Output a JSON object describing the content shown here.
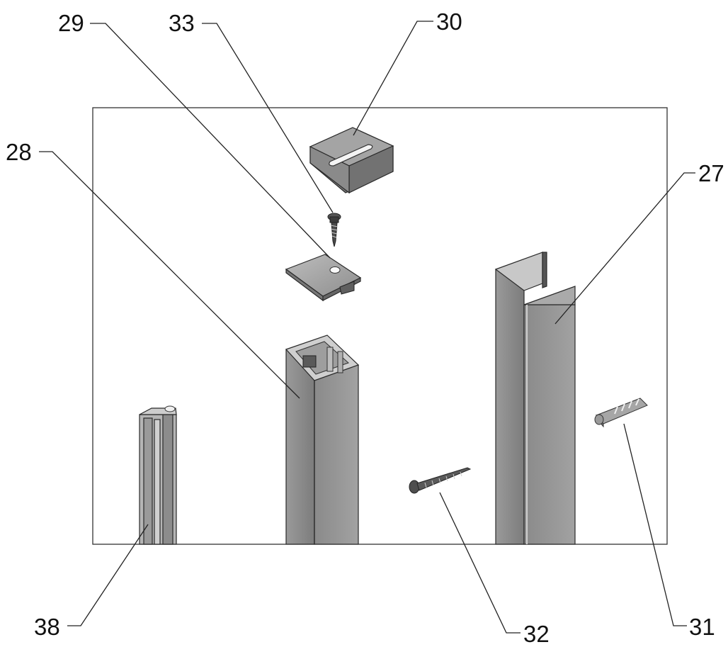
{
  "labels": {
    "l27": "27",
    "l28": "28",
    "l29": "29",
    "l30": "30",
    "l31": "31",
    "l32": "32",
    "l33": "33",
    "l38": "38"
  },
  "colors": {
    "metal_light": "#a9a9a9",
    "metal_mid": "#8d8d8d",
    "metal_dark": "#6e6e6e",
    "metal_highlight": "#d4d4d4",
    "frame": "#333333"
  }
}
